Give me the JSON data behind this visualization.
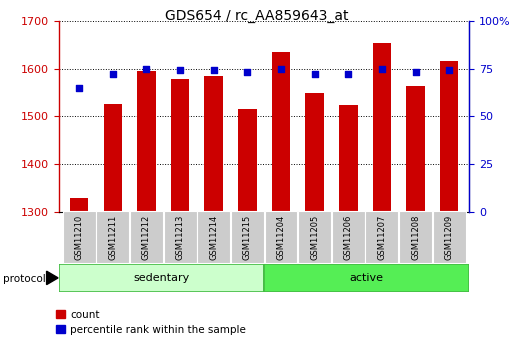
{
  "title": "GDS654 / rc_AA859643_at",
  "samples": [
    "GSM11210",
    "GSM11211",
    "GSM11212",
    "GSM11213",
    "GSM11214",
    "GSM11215",
    "GSM11204",
    "GSM11205",
    "GSM11206",
    "GSM11207",
    "GSM11208",
    "GSM11209"
  ],
  "counts": [
    1330,
    1525,
    1595,
    1578,
    1585,
    1515,
    1635,
    1548,
    1524,
    1653,
    1563,
    1615
  ],
  "percentiles": [
    65,
    72,
    75,
    74,
    74,
    73,
    75,
    72,
    72,
    75,
    73,
    74
  ],
  "groups": [
    "sedentary",
    "sedentary",
    "sedentary",
    "sedentary",
    "sedentary",
    "sedentary",
    "active",
    "active",
    "active",
    "active",
    "active",
    "active"
  ],
  "ylim_left": [
    1300,
    1700
  ],
  "ylim_right": [
    0,
    100
  ],
  "yticks_left": [
    1300,
    1400,
    1500,
    1600,
    1700
  ],
  "yticks_right": [
    0,
    25,
    50,
    75,
    100
  ],
  "bar_color": "#cc0000",
  "dot_color": "#0000cc",
  "bar_width": 0.55,
  "left_axis_color": "#cc0000",
  "right_axis_color": "#0000cc",
  "sed_color_light": "#ccffcc",
  "sed_color_border": "#44bb44",
  "act_color_light": "#55ee55",
  "act_color_border": "#44bb44"
}
